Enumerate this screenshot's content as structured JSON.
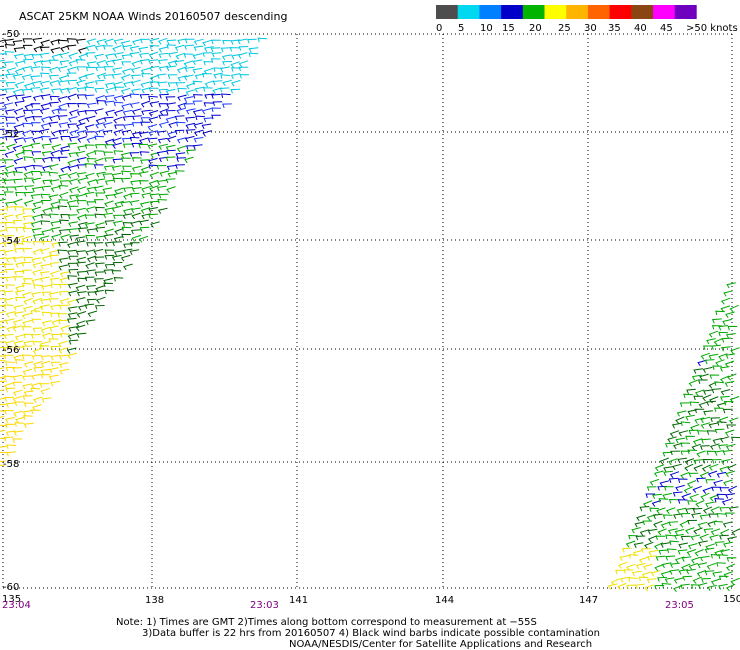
{
  "title": "ASCAT 25KM NOAA Winds 20160507 descending",
  "legend": {
    "tick_labels": [
      "0",
      "5",
      "10",
      "15",
      "20",
      "25",
      "30",
      "35",
      "40",
      "45",
      ">50 knots"
    ],
    "colors": [
      "#4d4d4d",
      "#00d8f0",
      "#0080ff",
      "#0000c8",
      "#00b400",
      "#ffff00",
      "#ffb400",
      "#ff6400",
      "#ff0000",
      "#8b4513",
      "#ff00ff",
      "#7000c0"
    ]
  },
  "lat_labels": [
    "-50",
    "-52",
    "-54",
    "-56",
    "-58",
    "-60"
  ],
  "lon_labels": [
    "135",
    "138",
    "141",
    "144",
    "147",
    "150"
  ],
  "time_labels": [
    "23:04",
    "23:03",
    "23:05"
  ],
  "time_color": "#800080",
  "notes": {
    "line1": "Note: 1) Times are GMT 2)Times along bottom correspond to measurement at −55S",
    "line2": "3)Data buffer is 22 hrs from 20160507 4) Black wind barbs indicate possible contamination",
    "line3": "NOAA/NESDIS/Center for Satellite Applications and Research"
  }
}
